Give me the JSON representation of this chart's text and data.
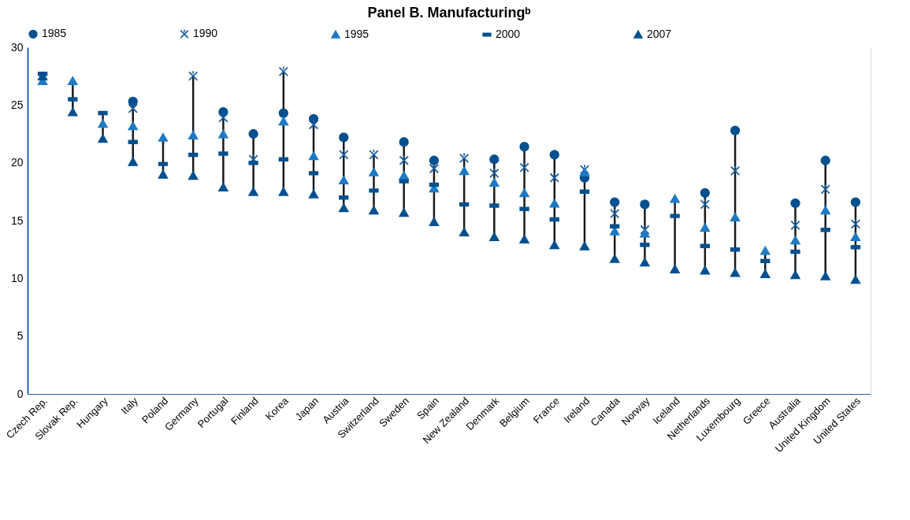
{
  "chart_data": {
    "type": "scatter",
    "title": "Panel B. Manufacturingᵇ",
    "categories": [
      "Czech Rep.",
      "Slovak Rep.",
      "Hungary",
      "Italy",
      "Poland",
      "Germany",
      "Portugal",
      "Finland",
      "Korea",
      "Japan",
      "Austria",
      "Switzerland",
      "Sweden",
      "Spain",
      "New Zealand",
      "Denmark",
      "Belgium",
      "France",
      "Ireland",
      "Canada",
      "Norway",
      "Iceland",
      "Netherlands",
      "Luxembourg",
      "Greece",
      "Australia",
      "United Kingdom",
      "United States"
    ],
    "series": [
      {
        "name": "1985",
        "color": "#00508f",
        "marker": "circle",
        "values": [
          null,
          null,
          null,
          25.3,
          null,
          null,
          24.4,
          22.5,
          24.3,
          23.8,
          22.2,
          null,
          21.8,
          20.2,
          null,
          20.3,
          21.4,
          20.7,
          18.7,
          16.6,
          16.4,
          null,
          17.4,
          22.8,
          null,
          16.5,
          20.2,
          16.6
        ]
      },
      {
        "name": "1990",
        "color": "#1d5fa0",
        "marker": "cross",
        "values": [
          null,
          null,
          null,
          24.7,
          null,
          27.5,
          23.9,
          20.3,
          27.9,
          23.3,
          20.7,
          20.7,
          20.2,
          19.5,
          20.4,
          19.1,
          19.6,
          18.7,
          19.4,
          15.6,
          14.2,
          null,
          16.4,
          19.3,
          null,
          14.6,
          17.7,
          14.7
        ]
      },
      {
        "name": "1995",
        "color": "#1f7ac4",
        "marker": "triangle",
        "values": [
          27.1,
          27.1,
          23.4,
          23.2,
          22.2,
          22.4,
          22.5,
          null,
          23.6,
          20.6,
          18.5,
          19.2,
          18.9,
          17.8,
          19.3,
          18.3,
          17.4,
          16.5,
          19.2,
          14.1,
          13.9,
          16.9,
          14.4,
          15.3,
          12.4,
          13.3,
          15.9,
          13.6
        ]
      },
      {
        "name": "2000",
        "color": "#00508f",
        "marker": "square",
        "values": [
          27.7,
          25.5,
          24.3,
          21.8,
          19.9,
          20.7,
          20.8,
          20.0,
          20.3,
          19.1,
          17.0,
          17.6,
          18.4,
          18.1,
          16.4,
          16.3,
          16.0,
          15.1,
          17.5,
          14.5,
          12.9,
          15.4,
          12.8,
          12.5,
          11.5,
          12.3,
          14.2,
          12.7
        ]
      },
      {
        "name": "2007",
        "color": "#00508f",
        "marker": "triangle",
        "values": [
          27.5,
          24.4,
          22.1,
          20.1,
          19.0,
          18.9,
          17.9,
          17.5,
          17.5,
          17.3,
          16.1,
          15.9,
          15.7,
          14.9,
          14.0,
          13.6,
          13.4,
          12.9,
          12.8,
          11.7,
          11.4,
          10.8,
          10.7,
          10.5,
          10.4,
          10.3,
          10.2,
          9.9
        ]
      }
    ],
    "ylim": [
      0,
      30
    ],
    "yticks": [
      0,
      5,
      10,
      15,
      20,
      25,
      30
    ],
    "grid": "y",
    "legend": "top"
  }
}
